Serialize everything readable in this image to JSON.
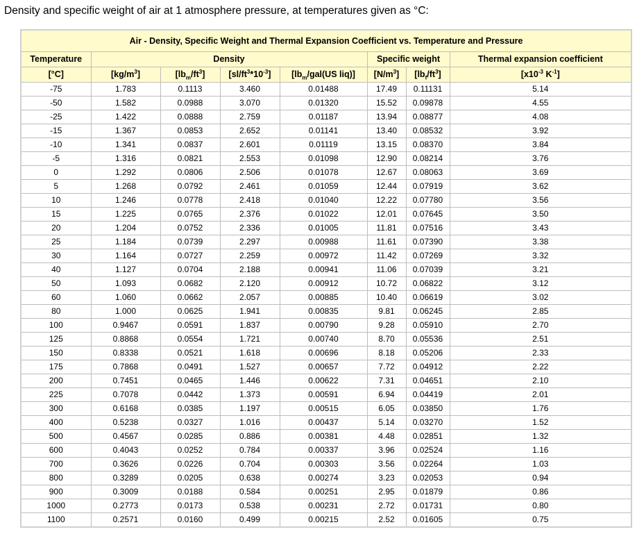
{
  "intro_text": "Density and specific weight of air at 1 atmosphere pressure, at temperatures given as °C:",
  "table": {
    "title": "Air - Density, Specific Weight and Thermal Expansion Coefficient vs. Temperature and Pressure",
    "groups": {
      "temperature": "Temperature",
      "density": "Density",
      "specific_weight": "Specific weight",
      "thermal": "Thermal expansion coefficient"
    },
    "units": {
      "temp": "[°C]",
      "kgm3": {
        "pre": "[kg/m",
        "sup": "3",
        "post": "]"
      },
      "lbmft3": {
        "pre": "[lb",
        "sub": "m",
        "mid": "/ft",
        "sup": "3",
        "post": "]"
      },
      "slft3": {
        "pre": "[sl/ft",
        "sup": "3",
        "post": "*10",
        "sup2": "-3",
        "end": "]"
      },
      "lbmgal": {
        "pre": "[lb",
        "sub": "m",
        "post": "/gal(US liq)]"
      },
      "nm3": {
        "pre": "[N/m",
        "sup": "3",
        "post": "]"
      },
      "lbfft3": {
        "pre": "[lb",
        "sub": "f",
        "mid": "/ft",
        "sup": "3",
        "post": "]"
      },
      "thermal": {
        "pre": "[x10",
        "sup": "-3",
        "mid": " K",
        "sup2": "-1",
        "post": "]"
      }
    },
    "rows": [
      [
        "-75",
        "1.783",
        "0.1113",
        "3.460",
        "0.01488",
        "17.49",
        "0.11131",
        "5.14"
      ],
      [
        "-50",
        "1.582",
        "0.0988",
        "3.070",
        "0.01320",
        "15.52",
        "0.09878",
        "4.55"
      ],
      [
        "-25",
        "1.422",
        "0.0888",
        "2.759",
        "0.01187",
        "13.94",
        "0.08877",
        "4.08"
      ],
      [
        "-15",
        "1.367",
        "0.0853",
        "2.652",
        "0.01141",
        "13.40",
        "0.08532",
        "3.92"
      ],
      [
        "-10",
        "1.341",
        "0.0837",
        "2.601",
        "0.01119",
        "13.15",
        "0.08370",
        "3.84"
      ],
      [
        "-5",
        "1.316",
        "0.0821",
        "2.553",
        "0.01098",
        "12.90",
        "0.08214",
        "3.76"
      ],
      [
        "0",
        "1.292",
        "0.0806",
        "2.506",
        "0.01078",
        "12.67",
        "0.08063",
        "3.69"
      ],
      [
        "5",
        "1.268",
        "0.0792",
        "2.461",
        "0.01059",
        "12.44",
        "0.07919",
        "3.62"
      ],
      [
        "10",
        "1.246",
        "0.0778",
        "2.418",
        "0.01040",
        "12.22",
        "0.07780",
        "3.56"
      ],
      [
        "15",
        "1.225",
        "0.0765",
        "2.376",
        "0.01022",
        "12.01",
        "0.07645",
        "3.50"
      ],
      [
        "20",
        "1.204",
        "0.0752",
        "2.336",
        "0.01005",
        "11.81",
        "0.07516",
        "3.43"
      ],
      [
        "25",
        "1.184",
        "0.0739",
        "2.297",
        "0.00988",
        "11.61",
        "0.07390",
        "3.38"
      ],
      [
        "30",
        "1.164",
        "0.0727",
        "2.259",
        "0.00972",
        "11.42",
        "0.07269",
        "3.32"
      ],
      [
        "40",
        "1.127",
        "0.0704",
        "2.188",
        "0.00941",
        "11.06",
        "0.07039",
        "3.21"
      ],
      [
        "50",
        "1.093",
        "0.0682",
        "2.120",
        "0.00912",
        "10.72",
        "0.06822",
        "3.12"
      ],
      [
        "60",
        "1.060",
        "0.0662",
        "2.057",
        "0.00885",
        "10.40",
        "0.06619",
        "3.02"
      ],
      [
        "80",
        "1.000",
        "0.0625",
        "1.941",
        "0.00835",
        "9.81",
        "0.06245",
        "2.85"
      ],
      [
        "100",
        "0.9467",
        "0.0591",
        "1.837",
        "0.00790",
        "9.28",
        "0.05910",
        "2.70"
      ],
      [
        "125",
        "0.8868",
        "0.0554",
        "1.721",
        "0.00740",
        "8.70",
        "0.05536",
        "2.51"
      ],
      [
        "150",
        "0.8338",
        "0.0521",
        "1.618",
        "0.00696",
        "8.18",
        "0.05206",
        "2.33"
      ],
      [
        "175",
        "0.7868",
        "0.0491",
        "1.527",
        "0.00657",
        "7.72",
        "0.04912",
        "2.22"
      ],
      [
        "200",
        "0.7451",
        "0.0465",
        "1.446",
        "0.00622",
        "7.31",
        "0.04651",
        "2.10"
      ],
      [
        "225",
        "0.7078",
        "0.0442",
        "1.373",
        "0.00591",
        "6.94",
        "0.04419",
        "2.01"
      ],
      [
        "300",
        "0.6168",
        "0.0385",
        "1.197",
        "0.00515",
        "6.05",
        "0.03850",
        "1.76"
      ],
      [
        "400",
        "0.5238",
        "0.0327",
        "1.016",
        "0.00437",
        "5.14",
        "0.03270",
        "1.52"
      ],
      [
        "500",
        "0.4567",
        "0.0285",
        "0.886",
        "0.00381",
        "4.48",
        "0.02851",
        "1.32"
      ],
      [
        "600",
        "0.4043",
        "0.0252",
        "0.784",
        "0.00337",
        "3.96",
        "0.02524",
        "1.16"
      ],
      [
        "700",
        "0.3626",
        "0.0226",
        "0.704",
        "0.00303",
        "3.56",
        "0.02264",
        "1.03"
      ],
      [
        "800",
        "0.3289",
        "0.0205",
        "0.638",
        "0.00274",
        "3.23",
        "0.02053",
        "0.94"
      ],
      [
        "900",
        "0.3009",
        "0.0188",
        "0.584",
        "0.00251",
        "2.95",
        "0.01879",
        "0.86"
      ],
      [
        "1000",
        "0.2773",
        "0.0173",
        "0.538",
        "0.00231",
        "2.72",
        "0.01731",
        "0.80"
      ],
      [
        "1100",
        "0.2571",
        "0.0160",
        "0.499",
        "0.00215",
        "2.52",
        "0.01605",
        "0.75"
      ]
    ]
  },
  "colors": {
    "header_background": "#fffbcc",
    "border": "#bdbdbd"
  }
}
